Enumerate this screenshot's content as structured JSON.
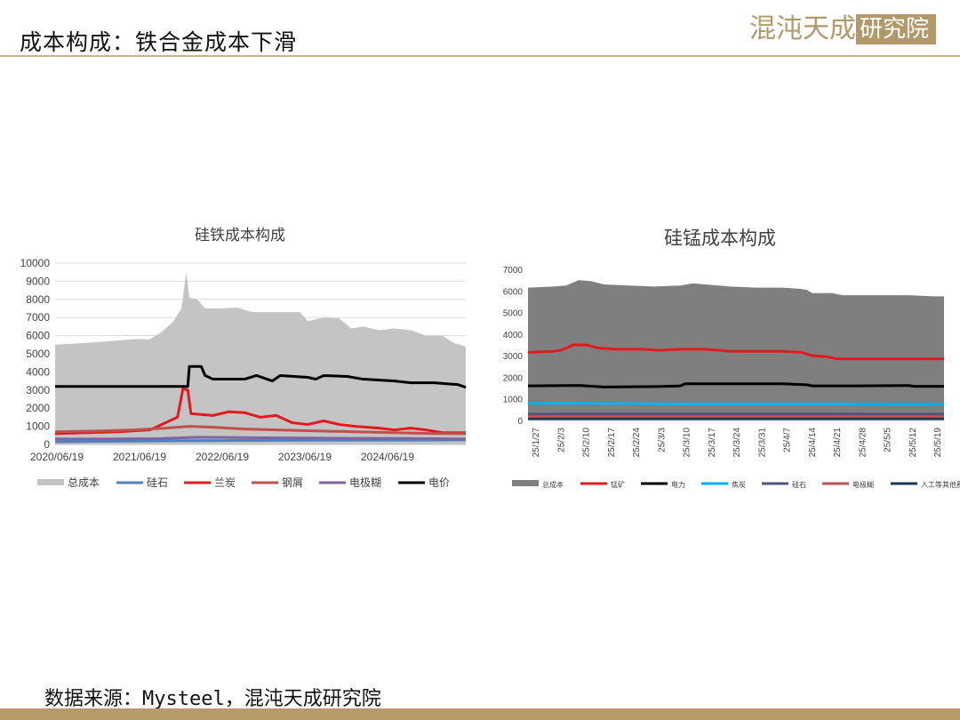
{
  "page": {
    "title": "成本构成：铁合金成本下滑",
    "brand_name": "混沌天成",
    "brand_box": "研究院",
    "source": "数据来源：Mysteel，混沌天成研究院"
  },
  "chart_data": [
    {
      "type": "area",
      "title": "硅铁成本构成",
      "ylim": [
        0,
        10000
      ],
      "y_ticks": [
        "10000",
        "9000",
        "8000",
        "7000",
        "6000",
        "5000",
        "4000",
        "3000",
        "2000",
        "1000",
        "0"
      ],
      "x_ticks": [
        "2020/06/19",
        "2021/06/19",
        "2022/06/19",
        "2023/06/19",
        "2024/06/19"
      ],
      "x_range": [
        2020.2,
        2025.4
      ],
      "grid": true,
      "legend_position": "bottom",
      "series": [
        {
          "name": "总成本",
          "kind": "area",
          "color": "#c4c4c4",
          "points": [
            [
              2020.2,
              5500
            ],
            [
              2020.6,
              5600
            ],
            [
              2020.9,
              5700
            ],
            [
              2021.2,
              5800
            ],
            [
              2021.4,
              5800
            ],
            [
              2021.55,
              6200
            ],
            [
              2021.7,
              6800
            ],
            [
              2021.8,
              7500
            ],
            [
              2021.86,
              9500
            ],
            [
              2021.9,
              8100
            ],
            [
              2022.0,
              8000
            ],
            [
              2022.1,
              7500
            ],
            [
              2022.3,
              7500
            ],
            [
              2022.5,
              7550
            ],
            [
              2022.7,
              7300
            ],
            [
              2022.9,
              7300
            ],
            [
              2023.1,
              7300
            ],
            [
              2023.3,
              7300
            ],
            [
              2023.4,
              6800
            ],
            [
              2023.6,
              7000
            ],
            [
              2023.8,
              6950
            ],
            [
              2023.95,
              6400
            ],
            [
              2024.1,
              6500
            ],
            [
              2024.3,
              6300
            ],
            [
              2024.5,
              6400
            ],
            [
              2024.7,
              6300
            ],
            [
              2024.9,
              6000
            ],
            [
              2025.1,
              6000
            ],
            [
              2025.25,
              5600
            ],
            [
              2025.4,
              5400
            ]
          ]
        },
        {
          "name": "硅石",
          "kind": "line",
          "color": "#4f81bd",
          "points": [
            [
              2020.2,
              150
            ],
            [
              2021.0,
              180
            ],
            [
              2021.7,
              200
            ],
            [
              2022.5,
              220
            ],
            [
              2023.5,
              230
            ],
            [
              2024.5,
              240
            ],
            [
              2025.4,
              250
            ]
          ]
        },
        {
          "name": "兰炭",
          "kind": "line",
          "color": "#e31a1c",
          "points": [
            [
              2020.2,
              600
            ],
            [
              2020.6,
              650
            ],
            [
              2021.0,
              700
            ],
            [
              2021.4,
              800
            ],
            [
              2021.6,
              1200
            ],
            [
              2021.75,
              1500
            ],
            [
              2021.82,
              3100
            ],
            [
              2021.88,
              3000
            ],
            [
              2021.92,
              1700
            ],
            [
              2022.2,
              1600
            ],
            [
              2022.4,
              1800
            ],
            [
              2022.6,
              1750
            ],
            [
              2022.8,
              1500
            ],
            [
              2023.0,
              1600
            ],
            [
              2023.2,
              1200
            ],
            [
              2023.4,
              1100
            ],
            [
              2023.6,
              1300
            ],
            [
              2023.8,
              1100
            ],
            [
              2024.0,
              1000
            ],
            [
              2024.3,
              900
            ],
            [
              2024.5,
              800
            ],
            [
              2024.7,
              900
            ],
            [
              2024.9,
              800
            ],
            [
              2025.1,
              650
            ],
            [
              2025.4,
              650
            ]
          ]
        },
        {
          "name": "钢屑",
          "kind": "line",
          "color": "#c0504d",
          "points": [
            [
              2020.2,
              700
            ],
            [
              2020.8,
              750
            ],
            [
              2021.2,
              800
            ],
            [
              2021.6,
              900
            ],
            [
              2021.9,
              1000
            ],
            [
              2022.2,
              950
            ],
            [
              2022.6,
              850
            ],
            [
              2023.0,
              800
            ],
            [
              2023.5,
              750
            ],
            [
              2024.0,
              700
            ],
            [
              2024.5,
              650
            ],
            [
              2025.0,
              600
            ],
            [
              2025.4,
              600
            ]
          ]
        },
        {
          "name": "电极糊",
          "kind": "line",
          "color": "#8064a2",
          "points": [
            [
              2020.2,
              300
            ],
            [
              2020.8,
              300
            ],
            [
              2021.5,
              320
            ],
            [
              2022.0,
              400
            ],
            [
              2022.5,
              380
            ],
            [
              2023.0,
              360
            ],
            [
              2023.5,
              350
            ],
            [
              2024.0,
              340
            ],
            [
              2024.5,
              330
            ],
            [
              2025.0,
              320
            ],
            [
              2025.4,
              300
            ]
          ]
        },
        {
          "name": "电价",
          "kind": "line",
          "color": "#000000",
          "points": [
            [
              2020.2,
              3200
            ],
            [
              2020.8,
              3200
            ],
            [
              2021.4,
              3200
            ],
            [
              2021.7,
              3200
            ],
            [
              2021.88,
              3200
            ],
            [
              2021.9,
              4300
            ],
            [
              2022.05,
              4300
            ],
            [
              2022.1,
              3800
            ],
            [
              2022.2,
              3600
            ],
            [
              2022.6,
              3600
            ],
            [
              2022.75,
              3800
            ],
            [
              2022.95,
              3500
            ],
            [
              2023.05,
              3800
            ],
            [
              2023.4,
              3700
            ],
            [
              2023.5,
              3600
            ],
            [
              2023.6,
              3800
            ],
            [
              2023.9,
              3750
            ],
            [
              2024.1,
              3600
            ],
            [
              2024.5,
              3500
            ],
            [
              2024.7,
              3400
            ],
            [
              2025.0,
              3400
            ],
            [
              2025.3,
              3300
            ],
            [
              2025.4,
              3150
            ]
          ]
        }
      ]
    },
    {
      "type": "area",
      "title": "硅锰成本构成",
      "ylim": [
        0,
        7000
      ],
      "y_ticks": [
        "7000",
        "6000",
        "5000",
        "4000",
        "3000",
        "2000",
        "1000",
        "0"
      ],
      "x_ticks": [
        "25/1/27",
        "25/2/3",
        "25/2/10",
        "25/2/17",
        "25/2/24",
        "25/3/3",
        "25/3/10",
        "25/3/17",
        "25/3/24",
        "25/3/31",
        "25/4/7",
        "25/4/14",
        "25/4/21",
        "25/4/28",
        "25/5/5",
        "25/5/12",
        "25/5/19"
      ],
      "x_range": [
        0,
        16.4
      ],
      "grid": false,
      "legend_position": "bottom",
      "series": [
        {
          "name": "总成本",
          "kind": "area",
          "color": "#7f7f7f",
          "points": [
            [
              0,
              6150
            ],
            [
              1,
              6200
            ],
            [
              1.5,
              6250
            ],
            [
              2,
              6500
            ],
            [
              2.5,
              6450
            ],
            [
              3,
              6300
            ],
            [
              4,
              6250
            ],
            [
              5,
              6200
            ],
            [
              6,
              6250
            ],
            [
              6.5,
              6350
            ],
            [
              7,
              6300
            ],
            [
              8,
              6200
            ],
            [
              9,
              6150
            ],
            [
              10,
              6150
            ],
            [
              10.7,
              6100
            ],
            [
              11,
              6050
            ],
            [
              11.2,
              5900
            ],
            [
              12,
              5900
            ],
            [
              12.4,
              5800
            ],
            [
              13,
              5800
            ],
            [
              14,
              5800
            ],
            [
              15,
              5800
            ],
            [
              16,
              5750
            ],
            [
              16.4,
              5750
            ]
          ]
        },
        {
          "name": "锰矿",
          "kind": "line",
          "color": "#e31a1c",
          "points": [
            [
              0,
              3150
            ],
            [
              1,
              3200
            ],
            [
              1.3,
              3250
            ],
            [
              1.8,
              3500
            ],
            [
              2.3,
              3500
            ],
            [
              2.8,
              3350
            ],
            [
              3.5,
              3300
            ],
            [
              4.5,
              3300
            ],
            [
              5.2,
              3250
            ],
            [
              6,
              3300
            ],
            [
              7,
              3300
            ],
            [
              8,
              3200
            ],
            [
              9,
              3200
            ],
            [
              10,
              3200
            ],
            [
              10.8,
              3150
            ],
            [
              11.2,
              3000
            ],
            [
              11.8,
              2950
            ],
            [
              12.2,
              2850
            ],
            [
              13,
              2850
            ],
            [
              14,
              2850
            ],
            [
              15,
              2850
            ],
            [
              16,
              2850
            ],
            [
              16.4,
              2850
            ]
          ]
        },
        {
          "name": "电力",
          "kind": "line",
          "color": "#000000",
          "points": [
            [
              0,
              1600
            ],
            [
              2,
              1620
            ],
            [
              3,
              1550
            ],
            [
              5,
              1570
            ],
            [
              6,
              1600
            ],
            [
              6.2,
              1700
            ],
            [
              8,
              1700
            ],
            [
              10,
              1700
            ],
            [
              11,
              1650
            ],
            [
              11.2,
              1600
            ],
            [
              13,
              1600
            ],
            [
              15,
              1620
            ],
            [
              15.2,
              1580
            ],
            [
              16.4,
              1580
            ]
          ]
        },
        {
          "name": "焦炭",
          "kind": "line",
          "color": "#00b0f0",
          "points": [
            [
              0,
              800
            ],
            [
              2,
              800
            ],
            [
              4,
              780
            ],
            [
              6,
              760
            ],
            [
              8,
              760
            ],
            [
              10,
              760
            ],
            [
              12,
              760
            ],
            [
              14,
              750
            ],
            [
              16.4,
              750
            ]
          ]
        },
        {
          "name": "硅石",
          "kind": "line",
          "color": "#4e5584",
          "points": [
            [
              0,
              300
            ],
            [
              16.4,
              300
            ]
          ]
        },
        {
          "name": "电极糊",
          "kind": "line",
          "color": "#c0504d",
          "points": [
            [
              0,
              180
            ],
            [
              16.4,
              180
            ]
          ]
        },
        {
          "name": "人工等其他费用",
          "kind": "line",
          "color": "#17375e",
          "points": [
            [
              0,
              60
            ],
            [
              16.4,
              60
            ]
          ]
        }
      ]
    }
  ]
}
